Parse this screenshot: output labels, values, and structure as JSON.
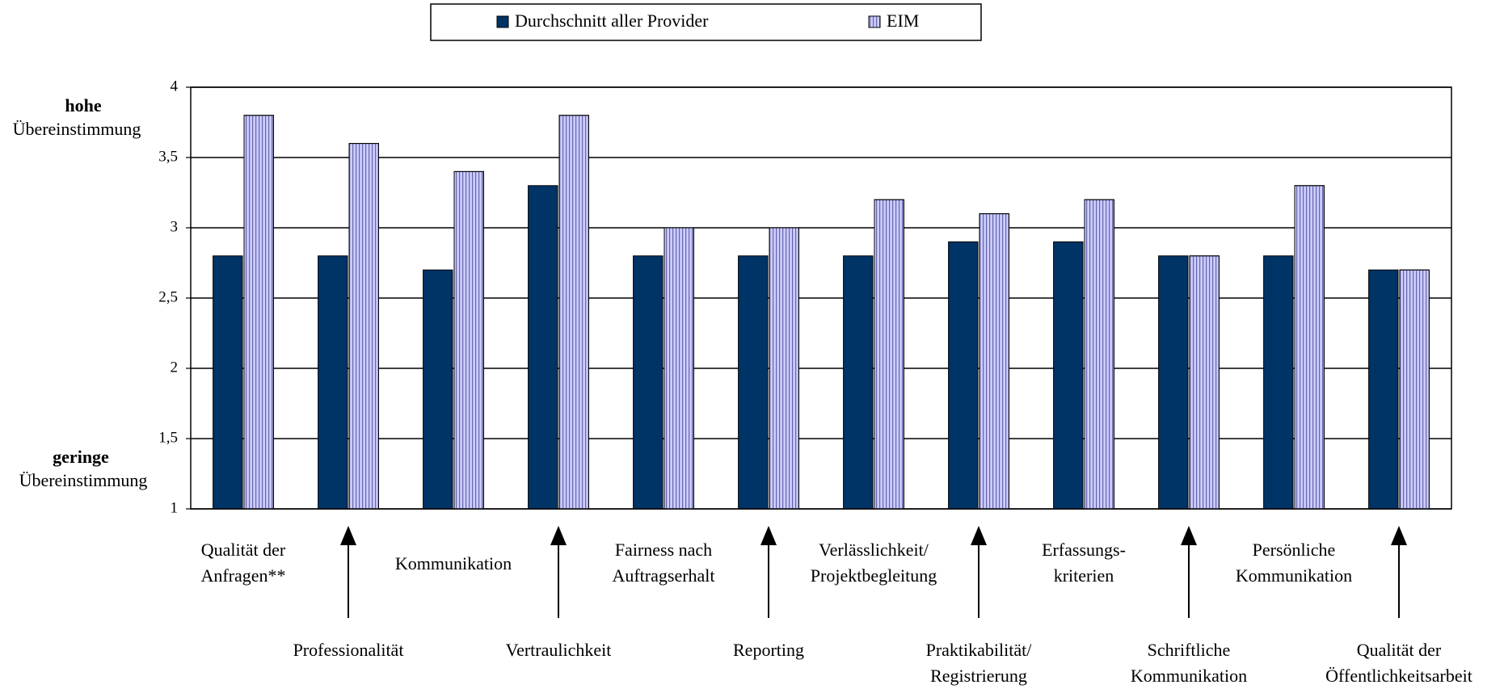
{
  "chart_data": {
    "type": "bar",
    "y_top_label": [
      "hohe",
      "Übereinstimmung"
    ],
    "y_bottom_label": [
      "geringe",
      "Übereinstimmung"
    ],
    "categories": [
      [
        "Qualität der",
        "Anfragen**"
      ],
      [
        "Professionalität"
      ],
      [
        "Kommunikation"
      ],
      [
        "Vertraulichkeit"
      ],
      [
        "Fairness nach",
        "Auftragserhalt"
      ],
      [
        "Reporting"
      ],
      [
        "Verlässlichkeit/",
        "Projektbegleitung"
      ],
      [
        "Praktikabilität/",
        "Registrierung"
      ],
      [
        "Erfassungs-",
        "kriterien"
      ],
      [
        "Schriftliche",
        "Kommunikation"
      ],
      [
        "Persönliche",
        "Kommunikation"
      ],
      [
        "Qualität der",
        "Öffentlichkeitsarbeit"
      ]
    ],
    "series": [
      {
        "name": "Durchschnitt aller Provider",
        "color": "#003366",
        "values": [
          2.8,
          2.8,
          2.7,
          3.3,
          2.8,
          2.8,
          2.8,
          2.9,
          2.9,
          2.8,
          2.8,
          2.7
        ]
      },
      {
        "name": "EIM",
        "color": "#ccccff",
        "values": [
          3.8,
          3.6,
          3.4,
          3.8,
          3.0,
          3.0,
          3.2,
          3.1,
          3.2,
          2.8,
          3.3,
          2.7
        ]
      }
    ],
    "ylim": [
      1,
      4
    ],
    "yticks": [
      1,
      {
        "value": 1.5,
        "label": "1,5"
      },
      2,
      {
        "value": 2.5,
        "label": "2,5"
      },
      3,
      {
        "value": 3.5,
        "label": "3,5"
      },
      4
    ],
    "grid": true,
    "legend": "top"
  }
}
